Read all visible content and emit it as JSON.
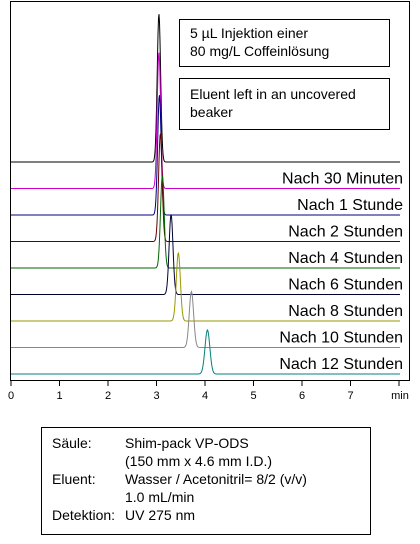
{
  "chart_data": {
    "type": "line",
    "title": "",
    "xlabel": "min",
    "ylabel": "",
    "xlim": [
      0,
      8
    ],
    "x_ticks": [
      "0",
      "1",
      "2",
      "3",
      "4",
      "5",
      "6",
      "7"
    ],
    "grid": false,
    "annotations": [
      [
        "5 µL Injektion einer",
        "80 mg/L Coffeinlösung"
      ],
      [
        "Eluent left in an uncovered",
        "beaker"
      ]
    ],
    "series": [
      {
        "name": "",
        "retention_min": 3.05,
        "color": "#000000"
      },
      {
        "name": "Nach 30 Minuten",
        "retention_min": 3.05,
        "color": "#cc00cc"
      },
      {
        "name": "Nach 1 Stunde",
        "retention_min": 3.06,
        "color": "#000080"
      },
      {
        "name": "Nach 2 Stunden",
        "retention_min": 3.08,
        "color": "#660000"
      },
      {
        "name": "Nach 4 Stunden",
        "retention_min": 3.12,
        "color": "#006600"
      },
      {
        "name": "Nach 6 Stunden",
        "retention_min": 3.3,
        "color": "#000033"
      },
      {
        "name": "Nach 8 Stunden",
        "retention_min": 3.45,
        "color": "#999900"
      },
      {
        "name": "Nach 10 Stunden",
        "retention_min": 3.72,
        "color": "#888888"
      },
      {
        "name": "Nach 12 Stunden",
        "retention_min": 4.05,
        "color": "#008080"
      }
    ]
  },
  "conditions": {
    "column_key": "Säule:",
    "column_val_1": "Shim-pack VP-ODS",
    "column_val_2": "(150 mm x 4.6 mm I.D.)",
    "eluent_key": "Eluent:",
    "eluent_val_1": "Wasser / Acetonitril= 8/2 (v/v)",
    "eluent_val_2": "1.0 mL/min",
    "detection_key": "Detektion:",
    "detection_val": "UV 275 nm"
  }
}
